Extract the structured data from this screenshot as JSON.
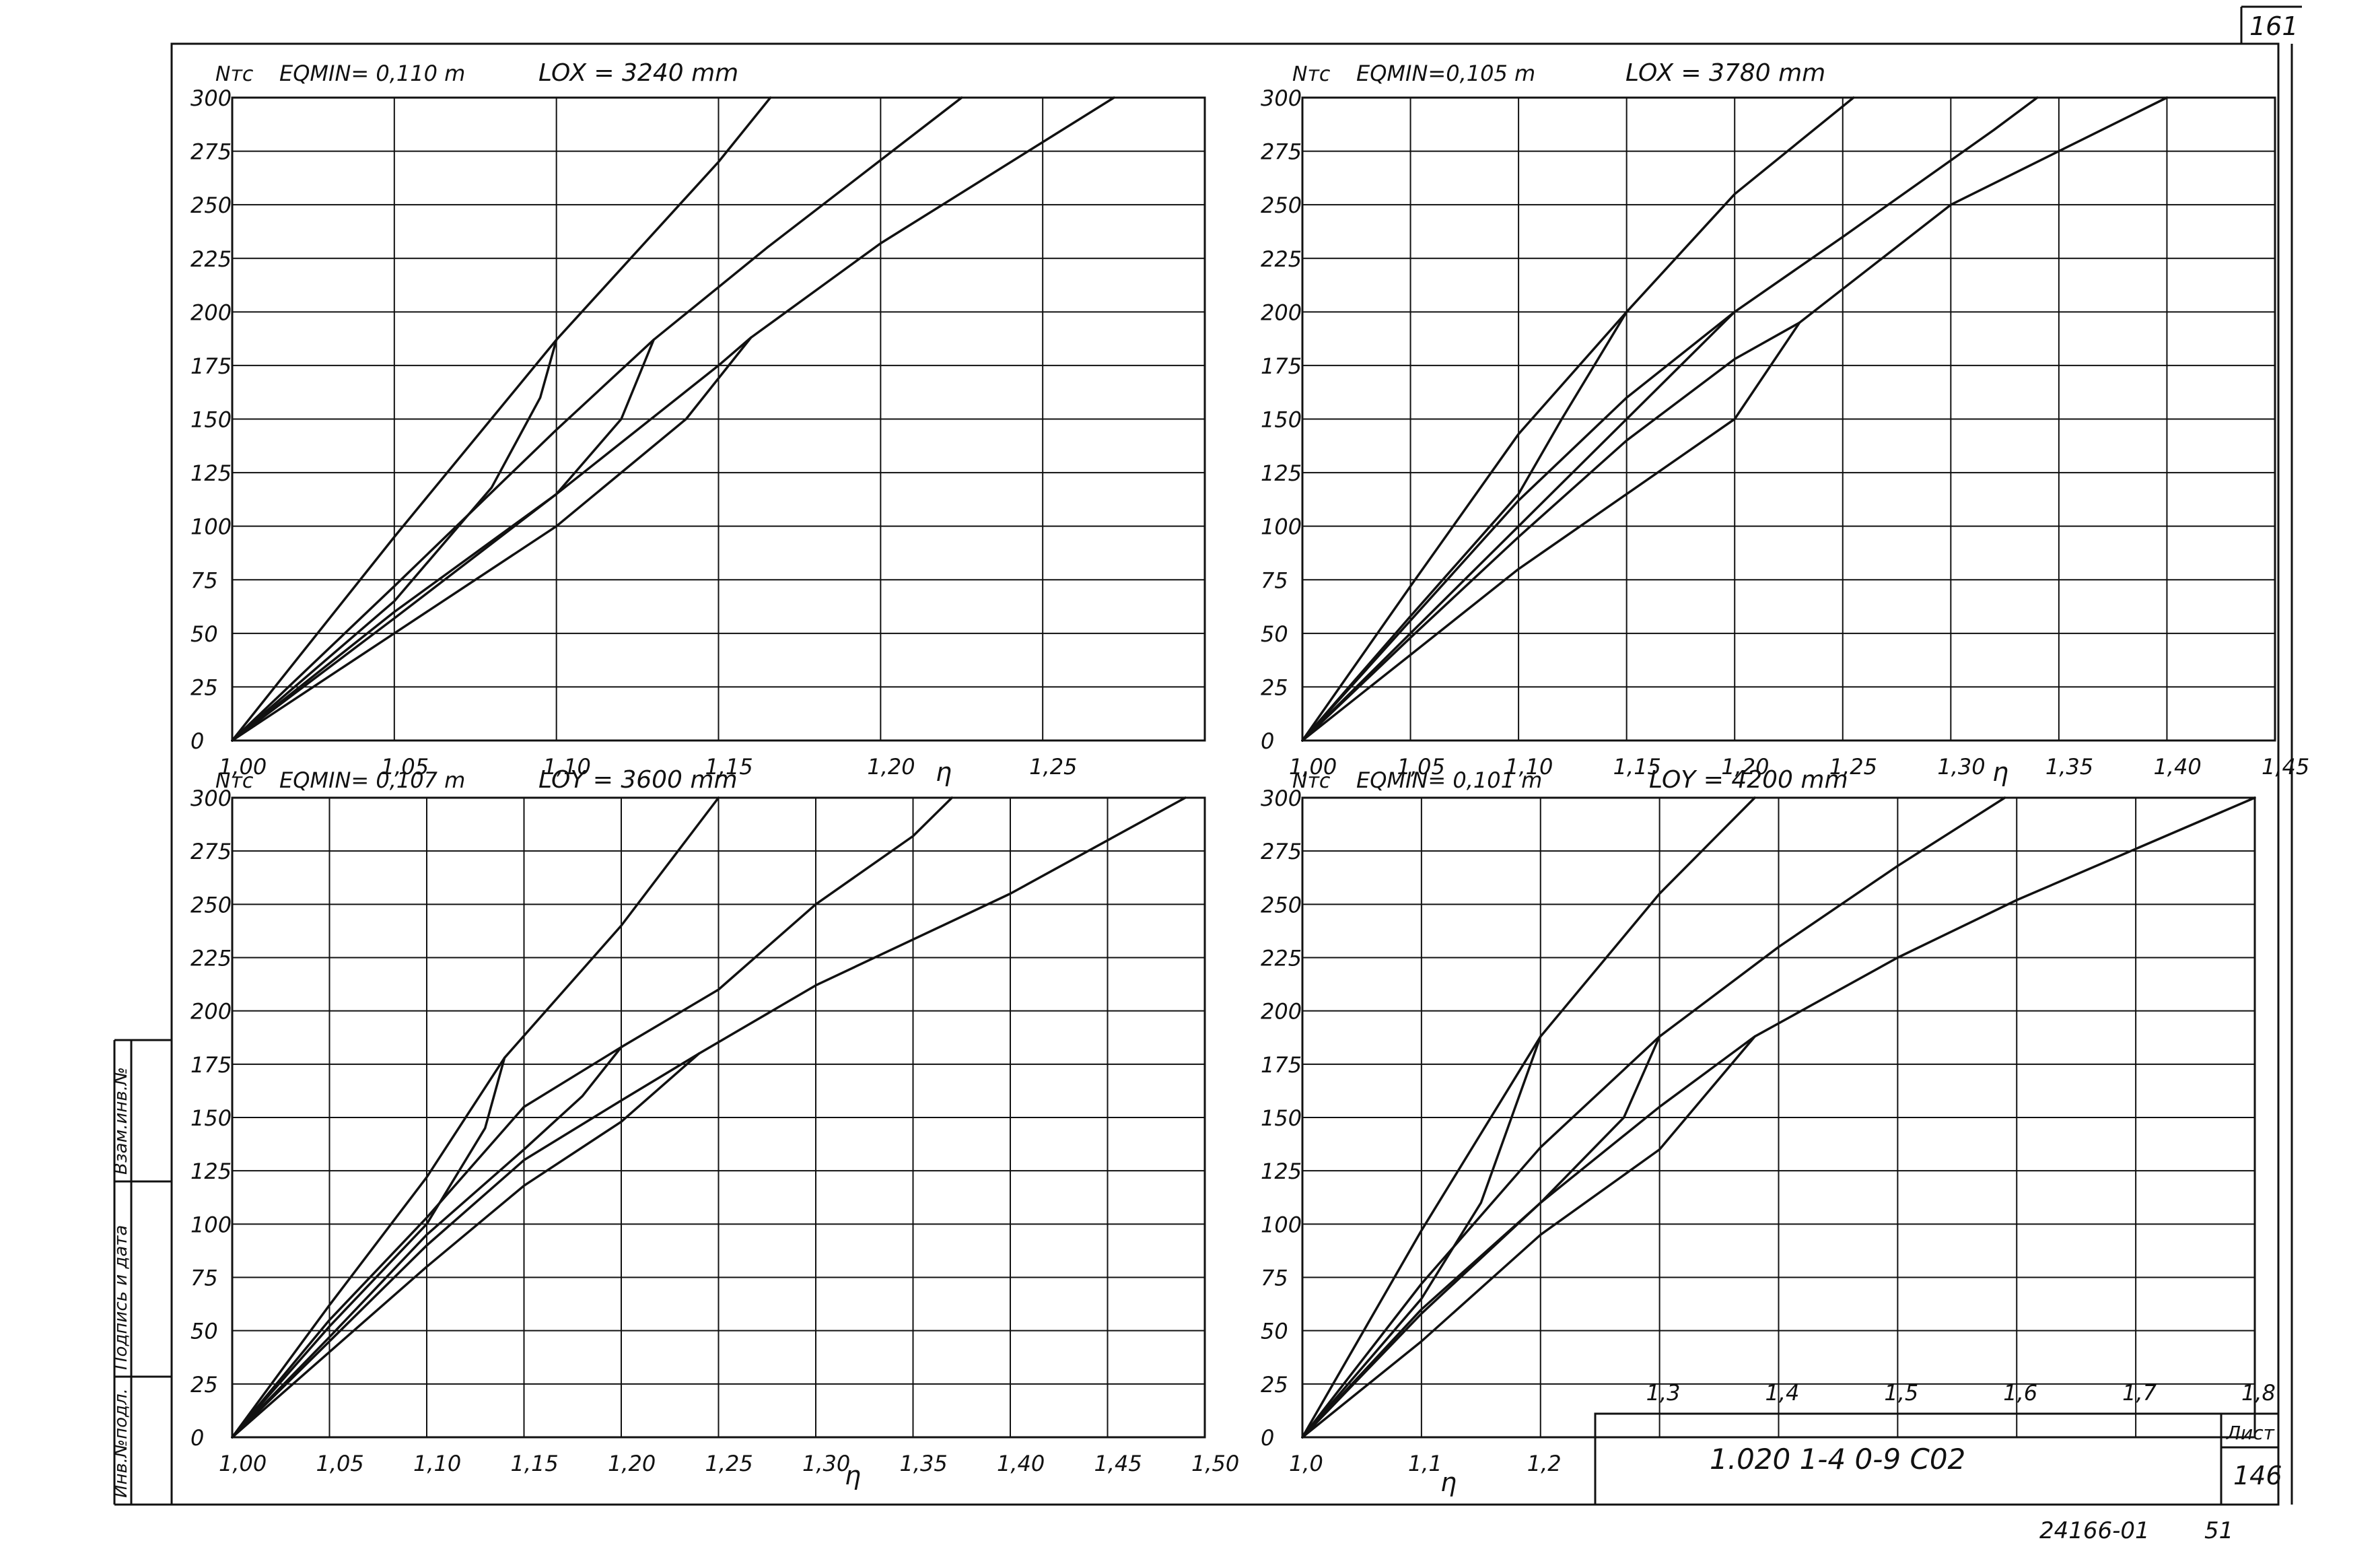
{
  "page": {
    "corner_number": "161",
    "footer_code": "24166-01",
    "footer_page": "51",
    "stamp": {
      "designation": "1.020 1-4    0-9   C02",
      "sheet_label": "Лист",
      "sheet_number": "146"
    },
    "side_strip": [
      "Инв.№подл.",
      "Подпись и дата",
      "Взам.инв.№"
    ]
  },
  "chart_data": [
    {
      "type": "line",
      "ylabel": "Nтс",
      "xlabel": "η",
      "eq_label": "EQMIN= 0,110 m",
      "length_label": "LOX = 3240 mm",
      "x_ticks": [
        "1,00",
        "1,05",
        "1,10",
        "1,15",
        "1,20",
        "1,25"
      ],
      "x_tick_values": [
        1.0,
        1.05,
        1.1,
        1.15,
        1.2,
        1.25
      ],
      "xlim": [
        1.0,
        1.3
      ],
      "y_ticks": [
        "0",
        "25",
        "50",
        "75",
        "100",
        "125",
        "150",
        "175",
        "200",
        "225",
        "250",
        "275",
        "300"
      ],
      "ylim": [
        0,
        300
      ],
      "series": [
        {
          "points": [
            [
              1.0,
              0
            ],
            [
              1.05,
              95
            ],
            [
              1.1,
              187
            ],
            [
              1.15,
              270
            ],
            [
              1.166,
              300
            ]
          ]
        },
        {
          "points": [
            [
              1.0,
              0
            ],
            [
              1.05,
              72
            ],
            [
              1.1,
              145
            ],
            [
              1.13,
              187
            ],
            [
              1.165,
              230
            ],
            [
              1.225,
              300
            ]
          ]
        },
        {
          "points": [
            [
              1.0,
              0
            ],
            [
              1.05,
              57
            ],
            [
              1.1,
              115
            ],
            [
              1.15,
              175
            ],
            [
              1.16,
              188
            ],
            [
              1.2,
              232
            ],
            [
              1.272,
              300
            ]
          ]
        },
        {
          "points": [
            [
              1.0,
              0
            ],
            [
              1.05,
              50
            ],
            [
              1.1,
              100
            ],
            [
              1.14,
              150
            ],
            [
              1.16,
              188
            ]
          ]
        },
        {
          "points": [
            [
              1.0,
              0
            ],
            [
              1.05,
              65
            ],
            [
              1.08,
              118
            ],
            [
              1.095,
              160
            ],
            [
              1.1,
              187
            ]
          ]
        },
        {
          "points": [
            [
              1.0,
              0
            ],
            [
              1.05,
              60
            ],
            [
              1.1,
              115
            ],
            [
              1.12,
              150
            ],
            [
              1.13,
              187
            ]
          ]
        }
      ]
    },
    {
      "type": "line",
      "ylabel": "Nтс",
      "xlabel": "η",
      "eq_label": "EQMIN=0,105 m",
      "length_label": "LOX = 3780 mm",
      "x_ticks": [
        "1,00",
        "1,05",
        "1,10",
        "1,15",
        "1,20",
        "1,25",
        "1,30",
        "1,35",
        "1,40",
        "1,45"
      ],
      "x_tick_values": [
        1.0,
        1.05,
        1.1,
        1.15,
        1.2,
        1.25,
        1.3,
        1.35,
        1.4,
        1.45
      ],
      "xlim": [
        1.0,
        1.45
      ],
      "y_ticks": [
        "0",
        "25",
        "50",
        "75",
        "100",
        "125",
        "150",
        "175",
        "200",
        "225",
        "250",
        "275",
        "300"
      ],
      "ylim": [
        0,
        300
      ],
      "series": [
        {
          "points": [
            [
              1.0,
              0
            ],
            [
              1.05,
              72
            ],
            [
              1.1,
              143
            ],
            [
              1.15,
              200
            ],
            [
              1.2,
              255
            ],
            [
              1.255,
              300
            ]
          ]
        },
        {
          "points": [
            [
              1.0,
              0
            ],
            [
              1.05,
              56
            ],
            [
              1.1,
              112
            ],
            [
              1.15,
              160
            ],
            [
              1.2,
              200
            ],
            [
              1.25,
              235
            ],
            [
              1.32,
              285
            ],
            [
              1.34,
              300
            ]
          ]
        },
        {
          "points": [
            [
              1.0,
              0
            ],
            [
              1.05,
              48
            ],
            [
              1.1,
              95
            ],
            [
              1.15,
              140
            ],
            [
              1.2,
              178
            ],
            [
              1.23,
              195
            ],
            [
              1.3,
              250
            ],
            [
              1.4,
              300
            ]
          ]
        },
        {
          "points": [
            [
              1.0,
              0
            ],
            [
              1.05,
              40
            ],
            [
              1.1,
              80
            ],
            [
              1.15,
              115
            ],
            [
              1.2,
              150
            ],
            [
              1.23,
              195
            ]
          ]
        },
        {
          "points": [
            [
              1.0,
              0
            ],
            [
              1.05,
              58
            ],
            [
              1.1,
              115
            ],
            [
              1.12,
              150
            ],
            [
              1.15,
              200
            ]
          ]
        },
        {
          "points": [
            [
              1.0,
              0
            ],
            [
              1.05,
              50
            ],
            [
              1.1,
              100
            ],
            [
              1.15,
              150
            ],
            [
              1.2,
              200
            ]
          ]
        }
      ]
    },
    {
      "type": "line",
      "ylabel": "Nтс",
      "xlabel": "η",
      "eq_label": "EQMIN= 0,107 m",
      "length_label": "LOY = 3600 mm",
      "x_ticks": [
        "1,00",
        "1,05",
        "1,10",
        "1,15",
        "1,20",
        "1,25",
        "1,30",
        "1,35",
        "1,40",
        "1,45",
        "1,50"
      ],
      "x_tick_values": [
        1.0,
        1.05,
        1.1,
        1.15,
        1.2,
        1.25,
        1.3,
        1.35,
        1.4,
        1.45,
        1.5
      ],
      "xlim": [
        1.0,
        1.5
      ],
      "y_ticks": [
        "0",
        "25",
        "50",
        "75",
        "100",
        "125",
        "150",
        "175",
        "200",
        "225",
        "250",
        "275",
        "300"
      ],
      "ylim": [
        0,
        300
      ],
      "series": [
        {
          "points": [
            [
              1.0,
              0
            ],
            [
              1.05,
              62
            ],
            [
              1.1,
              122
            ],
            [
              1.14,
              178
            ],
            [
              1.2,
              240
            ],
            [
              1.25,
              300
            ]
          ]
        },
        {
          "points": [
            [
              1.0,
              0
            ],
            [
              1.05,
              55
            ],
            [
              1.1,
              103
            ],
            [
              1.15,
              155
            ],
            [
              1.2,
              183
            ],
            [
              1.25,
              210
            ],
            [
              1.3,
              250
            ],
            [
              1.35,
              282
            ],
            [
              1.37,
              300
            ]
          ]
        },
        {
          "points": [
            [
              1.0,
              0
            ],
            [
              1.05,
              45
            ],
            [
              1.1,
              90
            ],
            [
              1.15,
              130
            ],
            [
              1.2,
              158
            ],
            [
              1.24,
              180
            ],
            [
              1.3,
              212
            ],
            [
              1.4,
              255
            ],
            [
              1.45,
              280
            ],
            [
              1.49,
              300
            ]
          ]
        },
        {
          "points": [
            [
              1.0,
              0
            ],
            [
              1.05,
              40
            ],
            [
              1.1,
              80
            ],
            [
              1.15,
              118
            ],
            [
              1.2,
              148
            ],
            [
              1.24,
              180
            ]
          ]
        },
        {
          "points": [
            [
              1.0,
              0
            ],
            [
              1.05,
              52
            ],
            [
              1.1,
              100
            ],
            [
              1.13,
              145
            ],
            [
              1.14,
              178
            ]
          ]
        },
        {
          "points": [
            [
              1.0,
              0
            ],
            [
              1.05,
              47
            ],
            [
              1.1,
              95
            ],
            [
              1.15,
              135
            ],
            [
              1.18,
              160
            ],
            [
              1.2,
              183
            ]
          ]
        }
      ]
    },
    {
      "type": "line",
      "ylabel": "Nтс",
      "xlabel": "η",
      "eq_label": "EQMIN= 0,101 m",
      "length_label": "LOY = 4200 mm",
      "x_ticks": [
        "1,0",
        "1,1",
        "1,2"
      ],
      "x_tick_values": [
        1.0,
        1.1,
        1.2
      ],
      "x_ticks_right": [
        "1,3",
        "1,4",
        "1,5",
        "1,6",
        "1,7",
        "1,8"
      ],
      "x_tick_values_right": [
        1.3,
        1.4,
        1.5,
        1.6,
        1.7,
        1.8
      ],
      "xlim": [
        1.0,
        1.8
      ],
      "y_ticks": [
        "0",
        "25",
        "50",
        "75",
        "100",
        "125",
        "150",
        "175",
        "200",
        "225",
        "250",
        "275",
        "300"
      ],
      "ylim": [
        0,
        300
      ],
      "series": [
        {
          "points": [
            [
              1.0,
              0
            ],
            [
              1.1,
              97
            ],
            [
              1.2,
              188
            ],
            [
              1.3,
              255
            ],
            [
              1.38,
              300
            ]
          ]
        },
        {
          "points": [
            [
              1.0,
              0
            ],
            [
              1.1,
              72
            ],
            [
              1.2,
              136
            ],
            [
              1.3,
              188
            ],
            [
              1.4,
              230
            ],
            [
              1.5,
              268
            ],
            [
              1.59,
              300
            ]
          ]
        },
        {
          "points": [
            [
              1.0,
              0
            ],
            [
              1.1,
              58
            ],
            [
              1.2,
              110
            ],
            [
              1.3,
              155
            ],
            [
              1.38,
              188
            ],
            [
              1.5,
              225
            ],
            [
              1.6,
              252
            ],
            [
              1.8,
              300
            ]
          ]
        },
        {
          "points": [
            [
              1.0,
              0
            ],
            [
              1.1,
              45
            ],
            [
              1.2,
              95
            ],
            [
              1.3,
              135
            ],
            [
              1.38,
              188
            ]
          ]
        },
        {
          "points": [
            [
              1.0,
              0
            ],
            [
              1.1,
              65
            ],
            [
              1.15,
              110
            ],
            [
              1.2,
              188
            ]
          ]
        },
        {
          "points": [
            [
              1.0,
              0
            ],
            [
              1.1,
              60
            ],
            [
              1.2,
              110
            ],
            [
              1.27,
              150
            ],
            [
              1.3,
              188
            ]
          ]
        }
      ]
    }
  ]
}
